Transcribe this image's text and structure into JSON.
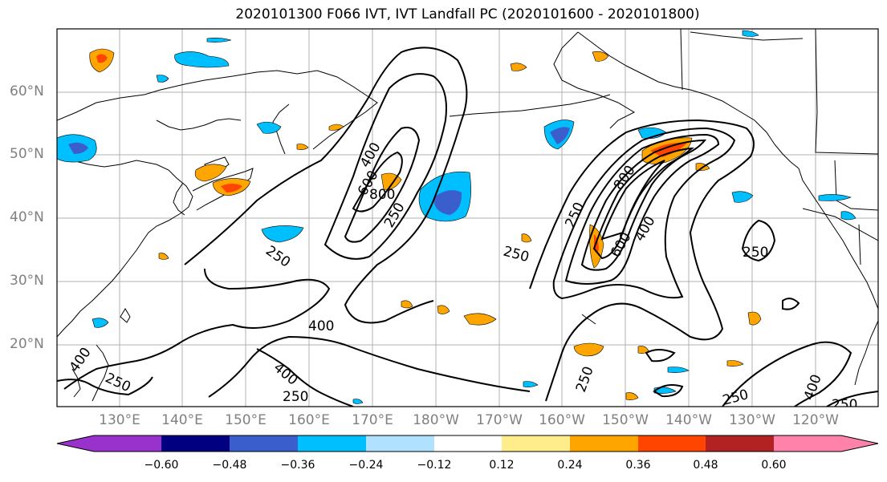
{
  "title": "2020101300 F066 IVT, IVT Landfall PC (2020101600 - 2020101800)",
  "lat_labels": [
    "60°N",
    "50°N",
    "40°N",
    "30°N",
    "20°N"
  ],
  "lon_labels": [
    "130°E",
    "140°E",
    "150°E",
    "160°E",
    "170°E",
    "180°W",
    "170°W",
    "160°W",
    "150°W",
    "140°W",
    "130°W",
    "120°W"
  ],
  "colorbar": {
    "ticks": [
      "−0.60",
      "−0.48",
      "−0.36",
      "−0.24",
      "−0.12",
      "0.12",
      "0.24",
      "0.36",
      "0.48",
      "0.60"
    ],
    "colors": [
      "#9932cc",
      "#000080",
      "#3a5fcd",
      "#00bfff",
      "#b0e2ff",
      "#ffffff",
      "#ffec8b",
      "#ffa500",
      "#ff4500",
      "#b22222",
      "#ff82ab"
    ]
  },
  "contour_labels": [
    "400",
    "600",
    "800",
    "250",
    "250",
    "250",
    "800",
    "600",
    "400",
    "250",
    "250",
    "400",
    "400",
    "250",
    "250",
    "400",
    "250",
    "250",
    "400",
    "250"
  ],
  "map": {
    "projection": "cylindrical",
    "lon_range": [
      "120°E",
      "110°W"
    ],
    "lat_range": [
      "10°N",
      "70°N"
    ]
  }
}
